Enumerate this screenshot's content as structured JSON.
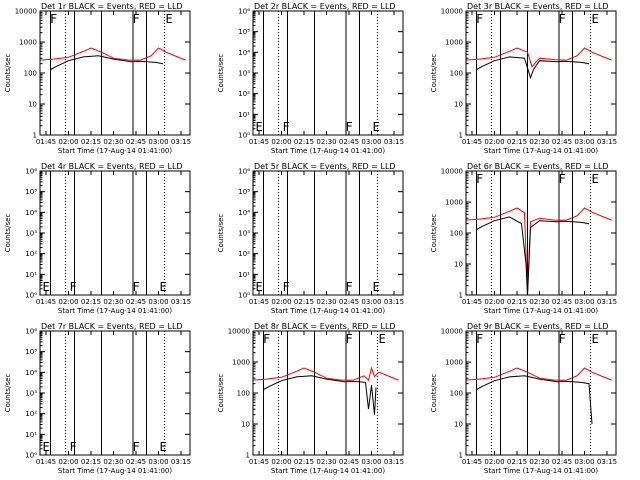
{
  "chart_data": [
    {
      "type": "line",
      "title": "Det 1r BLACK = Events, RED = LLD",
      "xlabel": "Start Time (17-Aug-14 01:41:00)",
      "ylabel": "Counts/sec",
      "y_scale": "log",
      "ylim": [
        1,
        10000
      ],
      "ytick_labels": [
        "1",
        "10",
        "100",
        "1000",
        "10000"
      ],
      "xlim": [
        "01:41",
        "03:21"
      ],
      "xtick_labels": [
        "01:45",
        "02:00",
        "02:15",
        "02:30",
        "02:45",
        "03:00",
        "03:15"
      ],
      "solid_lines": [
        "01:48",
        "02:04",
        "02:22",
        "02:43",
        "02:52"
      ],
      "dotted_lines": [
        "01:58",
        "03:04"
      ],
      "markers": [
        {
          "label": "F",
          "time": "01:47"
        },
        {
          "label": "F",
          "time": "02:42"
        },
        {
          "label": "E",
          "time": "03:04"
        }
      ],
      "marker_position": "top",
      "series": [
        {
          "color": "#ff0000",
          "x": [
            "01:41",
            "01:50",
            "02:00",
            "02:10",
            "02:15",
            "02:22",
            "02:30",
            "02:40",
            "02:48",
            "02:55",
            "03:00",
            "03:05",
            "03:12",
            "03:18"
          ],
          "values": [
            260,
            280,
            320,
            500,
            640,
            470,
            300,
            260,
            260,
            360,
            640,
            470,
            340,
            260
          ]
        },
        {
          "color": "#000000",
          "x": [
            "01:48",
            "01:52",
            "02:00",
            "02:10",
            "02:20",
            "02:30",
            "02:42",
            "02:45",
            "02:52",
            "02:58",
            "03:03"
          ],
          "values": [
            130,
            165,
            250,
            330,
            360,
            280,
            230,
            240,
            230,
            220,
            200
          ]
        }
      ]
    },
    {
      "type": "line",
      "title": "Det 2r BLACK = Events, RED = LLD",
      "xlabel": "Start Time (17-Aug-14 01:41:00)",
      "ylabel": "Counts/sec",
      "y_scale": "log",
      "ylim": [
        1,
        1000000
      ],
      "ytick_labels": [
        "10⁰",
        "10¹",
        "10²",
        "10³",
        "10⁴",
        "10⁵",
        "10⁶"
      ],
      "xlim": [
        "01:41",
        "03:21"
      ],
      "xtick_labels": [
        "01:45",
        "02:00",
        "02:15",
        "02:30",
        "02:45",
        "03:00",
        "03:15"
      ],
      "solid_lines": [
        "01:48",
        "02:04",
        "02:22",
        "02:43",
        "02:52"
      ],
      "dotted_lines": [
        "01:58",
        "03:04"
      ],
      "markers": [
        {
          "label": "E",
          "time": "01:42"
        },
        {
          "label": "F",
          "time": "02:00"
        },
        {
          "label": "F",
          "time": "02:42"
        },
        {
          "label": "E",
          "time": "03:00"
        }
      ],
      "marker_position": "bottom",
      "series": []
    },
    {
      "type": "line",
      "title": "Det 3r BLACK = Events, RED = LLD",
      "xlabel": "Start Time (17-Aug-14 01:41:00)",
      "ylabel": "Counts/sec",
      "y_scale": "log",
      "ylim": [
        1,
        10000
      ],
      "ytick_labels": [
        "1",
        "10",
        "100",
        "1000",
        "10000"
      ],
      "xlim": [
        "01:41",
        "03:21"
      ],
      "xtick_labels": [
        "01:45",
        "02:00",
        "02:15",
        "02:30",
        "02:45",
        "03:00",
        "03:15"
      ],
      "solid_lines": [
        "01:48",
        "02:04",
        "02:22",
        "02:43",
        "02:52"
      ],
      "dotted_lines": [
        "01:58",
        "03:04"
      ],
      "markers": [
        {
          "label": "F",
          "time": "01:47"
        },
        {
          "label": "F",
          "time": "02:42"
        },
        {
          "label": "E",
          "time": "03:04"
        }
      ],
      "marker_position": "top",
      "series": [
        {
          "color": "#ff0000",
          "x": [
            "01:41",
            "01:50",
            "02:00",
            "02:10",
            "02:15",
            "02:22",
            "02:25",
            "02:30",
            "02:40",
            "02:48",
            "02:55",
            "03:00",
            "03:05",
            "03:12",
            "03:18"
          ],
          "values": [
            260,
            280,
            320,
            500,
            640,
            470,
            160,
            300,
            270,
            260,
            360,
            640,
            470,
            340,
            260
          ]
        },
        {
          "color": "#000000",
          "x": [
            "01:48",
            "01:52",
            "02:00",
            "02:10",
            "02:20",
            "02:24",
            "02:26",
            "02:30",
            "02:42",
            "02:45",
            "02:52",
            "02:58",
            "03:03"
          ],
          "values": [
            130,
            165,
            250,
            330,
            300,
            70,
            130,
            250,
            230,
            240,
            230,
            220,
            200
          ]
        }
      ]
    },
    {
      "type": "line",
      "title": "Det 4r BLACK = Events, RED = LLD",
      "xlabel": "Start Time (17-Aug-14 01:41:00)",
      "ylabel": "Counts/sec",
      "y_scale": "log",
      "ylim": [
        1,
        1000000
      ],
      "ytick_labels": [
        "10⁰",
        "10¹",
        "10²",
        "10³",
        "10⁴",
        "10⁵",
        "10⁶"
      ],
      "xlim": [
        "01:41",
        "03:21"
      ],
      "xtick_labels": [
        "01:45",
        "02:00",
        "02:15",
        "02:30",
        "02:45",
        "03:00",
        "03:15"
      ],
      "solid_lines": [
        "01:48",
        "02:04",
        "02:22",
        "02:43",
        "02:52"
      ],
      "dotted_lines": [
        "01:58",
        "03:04"
      ],
      "markers": [
        {
          "label": "E",
          "time": "01:42"
        },
        {
          "label": "F",
          "time": "02:00"
        },
        {
          "label": "F",
          "time": "02:42"
        },
        {
          "label": "E",
          "time": "03:00"
        }
      ],
      "marker_position": "bottom",
      "series": []
    },
    {
      "type": "line",
      "title": "Det 5r BLACK = Events, RED = LLD",
      "xlabel": "Start Time (17-Aug-14 01:41:00)",
      "ylabel": "Counts/sec",
      "y_scale": "log",
      "ylim": [
        1,
        1000000
      ],
      "ytick_labels": [
        "10⁰",
        "10¹",
        "10²",
        "10³",
        "10⁴",
        "10⁵",
        "10⁶"
      ],
      "xlim": [
        "01:41",
        "03:21"
      ],
      "xtick_labels": [
        "01:45",
        "02:00",
        "02:15",
        "02:30",
        "02:45",
        "03:00",
        "03:15"
      ],
      "solid_lines": [
        "01:48",
        "02:04",
        "02:22",
        "02:43",
        "02:52"
      ],
      "dotted_lines": [
        "01:58",
        "03:04"
      ],
      "markers": [
        {
          "label": "E",
          "time": "01:42"
        },
        {
          "label": "F",
          "time": "02:00"
        },
        {
          "label": "F",
          "time": "02:42"
        },
        {
          "label": "E",
          "time": "03:00"
        }
      ],
      "marker_position": "bottom",
      "series": []
    },
    {
      "type": "line",
      "title": "Det 6r BLACK = Events, RED = LLD",
      "xlabel": "Start Time (17-Aug-14 01:41:00)",
      "ylabel": "Counts/sec",
      "y_scale": "log",
      "ylim": [
        1,
        10000
      ],
      "ytick_labels": [
        "1",
        "10",
        "100",
        "1000",
        "10000"
      ],
      "xlim": [
        "01:41",
        "03:21"
      ],
      "xtick_labels": [
        "01:45",
        "02:00",
        "02:15",
        "02:30",
        "02:45",
        "03:00",
        "03:15"
      ],
      "solid_lines": [
        "01:48",
        "02:04",
        "02:22",
        "02:43",
        "02:52"
      ],
      "dotted_lines": [
        "01:58",
        "03:04"
      ],
      "markers": [
        {
          "label": "F",
          "time": "01:47"
        },
        {
          "label": "F",
          "time": "02:42"
        },
        {
          "label": "E",
          "time": "03:04"
        }
      ],
      "marker_position": "top",
      "series": [
        {
          "color": "#ff0000",
          "x": [
            "01:41",
            "01:50",
            "02:00",
            "02:10",
            "02:15",
            "02:20",
            "02:22",
            "02:24",
            "02:30",
            "02:40",
            "02:48",
            "02:55",
            "03:00",
            "03:05",
            "03:12",
            "03:18"
          ],
          "values": [
            260,
            280,
            320,
            500,
            640,
            450,
            1,
            230,
            300,
            260,
            260,
            360,
            640,
            470,
            340,
            260
          ]
        },
        {
          "color": "#000000",
          "x": [
            "01:48",
            "01:52",
            "02:00",
            "02:10",
            "02:18",
            "02:21",
            "02:22",
            "02:24",
            "02:30",
            "02:42",
            "02:45",
            "02:52",
            "02:58",
            "03:03"
          ],
          "values": [
            130,
            165,
            250,
            330,
            200,
            10,
            1,
            150,
            250,
            230,
            240,
            230,
            220,
            200
          ]
        }
      ]
    },
    {
      "type": "line",
      "title": "Det 7r BLACK = Events, RED = LLD",
      "xlabel": "Start Time (17-Aug-14 01:41:00)",
      "ylabel": "Counts/sec",
      "y_scale": "log",
      "ylim": [
        1,
        1000000
      ],
      "ytick_labels": [
        "10⁰",
        "10¹",
        "10²",
        "10³",
        "10⁴",
        "10⁵",
        "10⁶"
      ],
      "xlim": [
        "01:41",
        "03:21"
      ],
      "xtick_labels": [
        "01:45",
        "02:00",
        "02:15",
        "02:30",
        "02:45",
        "03:00",
        "03:15"
      ],
      "solid_lines": [
        "01:48",
        "02:04",
        "02:22",
        "02:43",
        "02:52"
      ],
      "dotted_lines": [
        "01:58",
        "03:04"
      ],
      "markers": [
        {
          "label": "E",
          "time": "01:42"
        },
        {
          "label": "F",
          "time": "02:00"
        },
        {
          "label": "F",
          "time": "02:42"
        },
        {
          "label": "E",
          "time": "03:00"
        }
      ],
      "marker_position": "bottom",
      "series": []
    },
    {
      "type": "line",
      "title": "Det 8r BLACK = Events, RED = LLD",
      "xlabel": "Start Time (17-Aug-14 01:41:00)",
      "ylabel": "Counts/sec",
      "y_scale": "log",
      "ylim": [
        1,
        10000
      ],
      "ytick_labels": [
        "1",
        "10",
        "100",
        "1000",
        "10000"
      ],
      "xlim": [
        "01:41",
        "03:21"
      ],
      "xtick_labels": [
        "01:45",
        "02:00",
        "02:15",
        "02:30",
        "02:45",
        "03:00",
        "03:15"
      ],
      "solid_lines": [
        "01:48",
        "02:04",
        "02:22",
        "02:43",
        "02:52"
      ],
      "dotted_lines": [
        "01:58",
        "03:04"
      ],
      "markers": [
        {
          "label": "F",
          "time": "01:47"
        },
        {
          "label": "F",
          "time": "02:42"
        },
        {
          "label": "E",
          "time": "03:04"
        }
      ],
      "marker_position": "top",
      "series": [
        {
          "color": "#ff0000",
          "x": [
            "01:41",
            "01:50",
            "02:00",
            "02:10",
            "02:15",
            "02:22",
            "02:30",
            "02:40",
            "02:48",
            "02:55",
            "02:58",
            "03:00",
            "03:02",
            "03:05",
            "03:12",
            "03:18"
          ],
          "values": [
            260,
            280,
            320,
            500,
            640,
            470,
            300,
            260,
            260,
            360,
            260,
            640,
            340,
            470,
            340,
            260
          ]
        },
        {
          "color": "#000000",
          "x": [
            "01:48",
            "01:52",
            "02:00",
            "02:10",
            "02:20",
            "02:30",
            "02:42",
            "02:45",
            "02:52",
            "02:56",
            "02:58",
            "03:00",
            "03:02",
            "03:03"
          ],
          "values": [
            130,
            165,
            250,
            330,
            360,
            280,
            230,
            240,
            230,
            220,
            30,
            180,
            20,
            150
          ]
        }
      ]
    },
    {
      "type": "line",
      "title": "Det 9r BLACK = Events, RED = LLD",
      "xlabel": "Start Time (17-Aug-14 01:41:00)",
      "ylabel": "Counts/sec",
      "y_scale": "log",
      "ylim": [
        1,
        10000
      ],
      "ytick_labels": [
        "1",
        "10",
        "100",
        "1000",
        "10000"
      ],
      "xlim": [
        "01:41",
        "03:21"
      ],
      "xtick_labels": [
        "01:45",
        "02:00",
        "02:15",
        "02:30",
        "02:45",
        "03:00",
        "03:15"
      ],
      "solid_lines": [
        "01:48",
        "02:04",
        "02:22",
        "02:43",
        "02:52"
      ],
      "dotted_lines": [
        "01:58",
        "03:04"
      ],
      "markers": [
        {
          "label": "F",
          "time": "01:47"
        },
        {
          "label": "F",
          "time": "02:42"
        },
        {
          "label": "E",
          "time": "03:04"
        }
      ],
      "marker_position": "top",
      "series": [
        {
          "color": "#ff0000",
          "x": [
            "01:41",
            "01:50",
            "02:00",
            "02:10",
            "02:15",
            "02:22",
            "02:30",
            "02:40",
            "02:48",
            "02:55",
            "03:00",
            "03:05",
            "03:12",
            "03:18"
          ],
          "values": [
            260,
            280,
            320,
            500,
            640,
            470,
            300,
            260,
            260,
            360,
            640,
            470,
            340,
            260
          ]
        },
        {
          "color": "#000000",
          "x": [
            "01:48",
            "01:52",
            "02:00",
            "02:10",
            "02:20",
            "02:30",
            "02:42",
            "02:45",
            "02:52",
            "02:58",
            "03:03",
            "03:05"
          ],
          "values": [
            130,
            165,
            250,
            330,
            360,
            280,
            230,
            240,
            230,
            220,
            200,
            10
          ]
        }
      ]
    }
  ]
}
